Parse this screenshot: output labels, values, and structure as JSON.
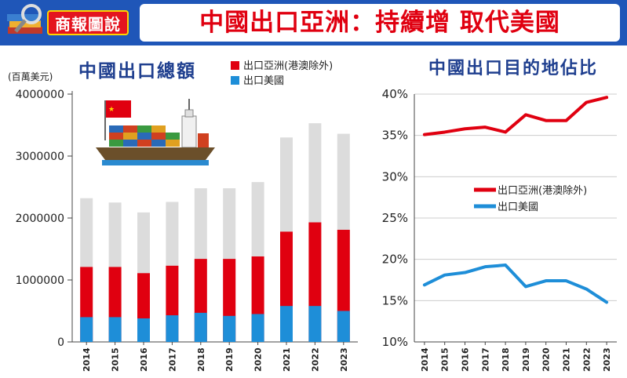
{
  "header": {
    "badge": "商報圖說",
    "headline": "中國出口亞洲：持續增 取代美國"
  },
  "colors": {
    "header_blue": "#1f56b8",
    "asia_red": "#e00010",
    "us_blue": "#1e8ed8",
    "total_grey": "#dcdcdc",
    "title_blue": "#1f3f8f"
  },
  "chart_data": [
    {
      "type": "bar",
      "title": "中國出口總額",
      "ylabel": "(百萬美元)",
      "categories": [
        "2014",
        "2015",
        "2016",
        "2017",
        "2018",
        "2019",
        "2020",
        "2021",
        "2022",
        "2023"
      ],
      "ylim": [
        0,
        4000000
      ],
      "yticks": [
        "4000000",
        "3000000",
        "2000000",
        "1000000",
        "0"
      ],
      "legend": [
        "出口亞洲(港澳除外)",
        "出口美國"
      ],
      "series": [
        {
          "name": "出口總額",
          "values": [
            2320000,
            2250000,
            2090000,
            2260000,
            2480000,
            2480000,
            2580000,
            3300000,
            3530000,
            3360000
          ]
        },
        {
          "name": "出口亞洲(港澳除外)",
          "values": [
            1210000,
            1210000,
            1110000,
            1230000,
            1340000,
            1340000,
            1380000,
            1780000,
            1930000,
            1810000
          ]
        },
        {
          "name": "出口美國",
          "values": [
            400000,
            400000,
            380000,
            430000,
            470000,
            420000,
            450000,
            580000,
            580000,
            500000
          ]
        }
      ]
    },
    {
      "type": "line",
      "title": "中國出口目的地佔比",
      "x": [
        "2014",
        "2015",
        "2016",
        "2017",
        "2018",
        "2019",
        "2020",
        "2021",
        "2022",
        "2023"
      ],
      "ylim": [
        10,
        40
      ],
      "yticks": [
        "40%",
        "35%",
        "30%",
        "25%",
        "20%",
        "15%",
        "10%"
      ],
      "legend": [
        "出口亞洲(港澳除外)",
        "出口美國"
      ],
      "series": [
        {
          "name": "出口亞洲(港澳除外)",
          "values": [
            35.1,
            35.4,
            35.8,
            36.0,
            35.4,
            37.5,
            36.8,
            36.8,
            39.0,
            39.6
          ]
        },
        {
          "name": "出口美國",
          "values": [
            16.9,
            18.1,
            18.4,
            19.1,
            19.3,
            16.7,
            17.4,
            17.4,
            16.4,
            14.8
          ]
        }
      ]
    }
  ]
}
